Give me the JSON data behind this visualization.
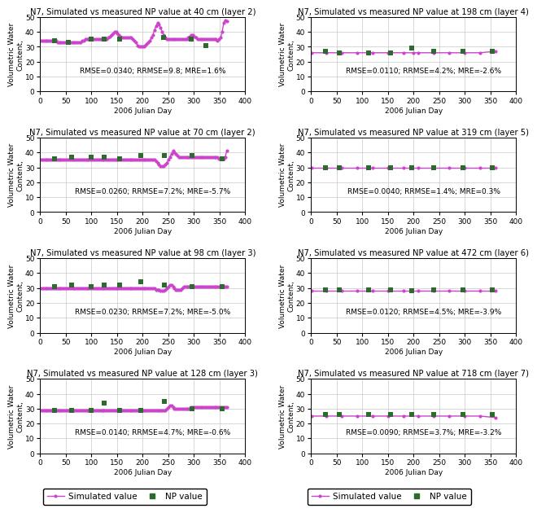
{
  "panels": [
    {
      "title": "N7, Simulated vs measured NP value at 40 cm (layer 2)",
      "rmse_text": "RMSE=0.0340; RRMSE=9.8; MRE=1.6%",
      "ylim": [
        0,
        50
      ],
      "yticks": [
        0,
        10,
        20,
        30,
        40,
        50
      ],
      "sim_x": [
        1,
        4,
        7,
        10,
        13,
        16,
        19,
        22,
        25,
        28,
        31,
        34,
        37,
        40,
        43,
        46,
        49,
        52,
        55,
        58,
        61,
        64,
        67,
        70,
        73,
        76,
        79,
        82,
        85,
        88,
        91,
        94,
        97,
        100,
        103,
        106,
        109,
        112,
        115,
        118,
        121,
        124,
        127,
        130,
        133,
        136,
        139,
        142,
        145,
        148,
        151,
        154,
        157,
        160,
        163,
        166,
        169,
        172,
        175,
        178,
        181,
        184,
        187,
        190,
        193,
        196,
        199,
        202,
        205,
        208,
        211,
        214,
        217,
        220,
        223,
        226,
        229,
        232,
        235,
        238,
        241,
        244,
        247,
        250,
        253,
        256,
        259,
        262,
        265,
        268,
        271,
        274,
        277,
        280,
        283,
        286,
        289,
        292,
        295,
        298,
        301,
        304,
        307,
        310,
        313,
        316,
        319,
        322,
        325,
        328,
        331,
        334,
        337,
        340,
        343,
        346,
        349,
        352,
        355,
        358,
        361,
        364
      ],
      "sim_y": [
        34,
        34,
        34,
        34,
        34,
        34,
        34,
        34,
        34,
        34,
        34,
        33,
        33,
        33,
        33,
        33,
        33,
        33,
        33,
        33,
        33,
        33,
        33,
        33,
        33,
        33,
        33,
        34,
        34,
        35,
        35,
        35,
        35,
        35,
        35,
        35,
        35,
        35,
        35,
        35,
        35,
        35,
        35,
        35,
        36,
        37,
        38,
        39,
        40,
        40,
        39,
        38,
        37,
        36,
        36,
        36,
        36,
        36,
        36,
        36,
        35,
        34,
        33,
        31,
        30,
        30,
        30,
        30,
        31,
        32,
        33,
        34,
        36,
        38,
        41,
        44,
        46,
        45,
        43,
        40,
        38,
        36,
        35,
        35,
        35,
        35,
        35,
        35,
        35,
        35,
        35,
        35,
        35,
        35,
        35,
        35,
        36,
        37,
        38,
        38,
        37,
        36,
        35,
        35,
        35,
        35,
        35,
        35,
        35,
        35,
        35,
        35,
        35,
        35,
        35,
        34,
        35,
        36,
        40,
        46,
        48,
        47
      ],
      "np_x": [
        28,
        55,
        100,
        125,
        155,
        240,
        295,
        323
      ],
      "np_y": [
        34,
        33,
        35,
        35,
        35,
        36,
        35,
        31
      ]
    },
    {
      "title": "N7, Simulated vs measured NP value at 198 cm (layer 4)",
      "rmse_text": "RMSE=0.0110; RRMSE=4.2%; MRE=-2.6%",
      "ylim": [
        0,
        50
      ],
      "yticks": [
        0,
        10,
        20,
        30,
        40,
        50
      ],
      "sim_x": [
        1,
        30,
        60,
        90,
        120,
        150,
        180,
        200,
        210,
        240,
        270,
        300,
        330,
        360
      ],
      "sim_y": [
        26,
        26,
        26,
        26,
        26,
        26,
        26,
        26,
        26,
        26,
        26,
        26,
        26,
        27
      ],
      "np_x": [
        28,
        55,
        112,
        155,
        197,
        240,
        297,
        353
      ],
      "np_y": [
        27,
        26,
        26,
        26,
        29,
        27,
        27,
        27
      ]
    },
    {
      "title": "N7, Simulated vs measured NP value at 70 cm (layer 2)",
      "rmse_text": "RMSE=0.0260; RRMSE=7.2%; MRE=-5.7%",
      "ylim": [
        0,
        50
      ],
      "yticks": [
        0,
        10,
        20,
        30,
        40,
        50
      ],
      "sim_x": [
        1,
        4,
        7,
        10,
        13,
        16,
        19,
        22,
        25,
        28,
        31,
        34,
        37,
        40,
        43,
        46,
        49,
        52,
        55,
        58,
        61,
        64,
        67,
        70,
        73,
        76,
        79,
        82,
        85,
        88,
        91,
        94,
        97,
        100,
        103,
        106,
        109,
        112,
        115,
        118,
        121,
        124,
        127,
        130,
        133,
        136,
        139,
        142,
        145,
        148,
        151,
        154,
        157,
        160,
        163,
        166,
        169,
        172,
        175,
        178,
        181,
        184,
        187,
        190,
        193,
        196,
        199,
        202,
        205,
        208,
        211,
        214,
        217,
        220,
        223,
        226,
        229,
        232,
        235,
        238,
        241,
        244,
        247,
        250,
        253,
        256,
        259,
        262,
        265,
        268,
        271,
        274,
        277,
        280,
        283,
        286,
        289,
        292,
        295,
        298,
        301,
        304,
        307,
        310,
        313,
        316,
        319,
        322,
        325,
        328,
        331,
        334,
        337,
        340,
        343,
        346,
        349,
        352,
        355,
        358,
        361,
        364
      ],
      "sim_y": [
        35,
        35,
        35,
        35,
        35,
        35,
        35,
        35,
        35,
        35,
        35,
        35,
        35,
        35,
        35,
        35,
        35,
        35,
        35,
        35,
        35,
        35,
        35,
        35,
        35,
        35,
        35,
        35,
        35,
        35,
        35,
        35,
        35,
        35,
        35,
        35,
        35,
        35,
        35,
        35,
        35,
        35,
        35,
        35,
        35,
        35,
        35,
        35,
        35,
        35,
        35,
        35,
        35,
        35,
        35,
        35,
        35,
        35,
        35,
        35,
        35,
        35,
        35,
        35,
        35,
        35,
        35,
        35,
        35,
        35,
        35,
        35,
        35,
        35,
        35,
        34,
        33,
        32,
        31,
        31,
        31,
        32,
        33,
        35,
        37,
        39,
        41,
        40,
        39,
        38,
        37,
        37,
        37,
        37,
        37,
        37,
        37,
        37,
        37,
        37,
        37,
        37,
        37,
        37,
        37,
        37,
        37,
        37,
        37,
        37,
        37,
        37,
        37,
        37,
        37,
        37,
        36,
        36,
        36,
        36,
        37,
        41
      ],
      "np_x": [
        28,
        62,
        100,
        125,
        155,
        197,
        242,
        297,
        355
      ],
      "np_y": [
        36,
        37,
        37,
        37,
        36,
        38,
        38,
        38,
        36
      ]
    },
    {
      "title": "N7, Simulated vs measured NP value at 319 cm (layer 5)",
      "rmse_text": "RMSE=0.0040; RRMSE=1.4%; MRE=0.3%",
      "ylim": [
        0,
        50
      ],
      "yticks": [
        0,
        10,
        20,
        30,
        40,
        50
      ],
      "sim_x": [
        1,
        30,
        60,
        90,
        120,
        150,
        180,
        210,
        240,
        270,
        300,
        330,
        360
      ],
      "sim_y": [
        30,
        30,
        30,
        30,
        30,
        30,
        30,
        30,
        30,
        30,
        30,
        30,
        30
      ],
      "np_x": [
        28,
        55,
        112,
        155,
        197,
        240,
        297,
        353
      ],
      "np_y": [
        30,
        30,
        30,
        30,
        30,
        30,
        30,
        30
      ]
    },
    {
      "title": "N7, Simulated vs measured NP value at 98 cm (layer 3)",
      "rmse_text": "RMSE=0.0230; RRMSE=7.2%; MRE=-5.0%",
      "ylim": [
        0,
        50
      ],
      "yticks": [
        0,
        10,
        20,
        30,
        40,
        50
      ],
      "sim_x": [
        1,
        4,
        7,
        10,
        13,
        16,
        19,
        22,
        25,
        28,
        31,
        34,
        37,
        40,
        43,
        46,
        49,
        52,
        55,
        58,
        61,
        64,
        67,
        70,
        73,
        76,
        79,
        82,
        85,
        88,
        91,
        94,
        97,
        100,
        103,
        106,
        109,
        112,
        115,
        118,
        121,
        124,
        127,
        130,
        133,
        136,
        139,
        142,
        145,
        148,
        151,
        154,
        157,
        160,
        163,
        166,
        169,
        172,
        175,
        178,
        181,
        184,
        187,
        190,
        193,
        196,
        199,
        202,
        205,
        208,
        211,
        214,
        217,
        220,
        223,
        226,
        229,
        232,
        235,
        238,
        241,
        244,
        247,
        250,
        253,
        256,
        259,
        262,
        265,
        268,
        271,
        274,
        277,
        280,
        283,
        286,
        289,
        292,
        295,
        298,
        301,
        304,
        307,
        310,
        313,
        316,
        319,
        322,
        325,
        328,
        331,
        334,
        337,
        340,
        343,
        346,
        349,
        352,
        355,
        358,
        361,
        364
      ],
      "sim_y": [
        30,
        30,
        30,
        30,
        30,
        30,
        30,
        30,
        30,
        30,
        30,
        30,
        30,
        30,
        30,
        30,
        30,
        30,
        30,
        30,
        30,
        30,
        30,
        30,
        30,
        30,
        30,
        30,
        30,
        30,
        30,
        30,
        30,
        30,
        30,
        30,
        30,
        30,
        30,
        30,
        30,
        30,
        30,
        30,
        30,
        30,
        30,
        30,
        30,
        30,
        30,
        30,
        30,
        30,
        30,
        30,
        30,
        30,
        30,
        30,
        30,
        30,
        30,
        30,
        30,
        30,
        30,
        30,
        30,
        30,
        30,
        30,
        30,
        30,
        30,
        29,
        29,
        29,
        28,
        28,
        28,
        29,
        30,
        31,
        32,
        32,
        31,
        30,
        29,
        29,
        29,
        29,
        30,
        31,
        31,
        31,
        31,
        31,
        31,
        31,
        31,
        31,
        31,
        31,
        31,
        31,
        31,
        31,
        31,
        31,
        31,
        31,
        31,
        31,
        31,
        31,
        31,
        31,
        31,
        31,
        31,
        31
      ],
      "np_x": [
        28,
        62,
        100,
        125,
        155,
        197,
        242,
        297,
        355
      ],
      "np_y": [
        31,
        32,
        31,
        32,
        32,
        34,
        32,
        31,
        31
      ]
    },
    {
      "title": "N7, Simulated vs measured NP value at 472 cm (layer 6)",
      "rmse_text": "RMSE=0.0120; RRMSE=4.5%; MRE=-3.9%",
      "ylim": [
        0,
        50
      ],
      "yticks": [
        0,
        10,
        20,
        30,
        40,
        50
      ],
      "sim_x": [
        1,
        30,
        60,
        90,
        120,
        150,
        180,
        210,
        240,
        270,
        300,
        330,
        360
      ],
      "sim_y": [
        28,
        28,
        28,
        28,
        28,
        28,
        28,
        28,
        28,
        28,
        28,
        28,
        28
      ],
      "np_x": [
        28,
        55,
        112,
        155,
        197,
        240,
        297,
        353
      ],
      "np_y": [
        29,
        29,
        29,
        29,
        28,
        29,
        29,
        29
      ]
    },
    {
      "title": "N7, Simulated vs measured NP value at 128 cm (layer 3)",
      "rmse_text": "RMSE=0.0140; RRMSE=4.7%; MRE=-0.6%",
      "ylim": [
        0,
        50
      ],
      "yticks": [
        0,
        10,
        20,
        30,
        40,
        50
      ],
      "sim_x": [
        1,
        4,
        7,
        10,
        13,
        16,
        19,
        22,
        25,
        28,
        31,
        34,
        37,
        40,
        43,
        46,
        49,
        52,
        55,
        58,
        61,
        64,
        67,
        70,
        73,
        76,
        79,
        82,
        85,
        88,
        91,
        94,
        97,
        100,
        103,
        106,
        109,
        112,
        115,
        118,
        121,
        124,
        127,
        130,
        133,
        136,
        139,
        142,
        145,
        148,
        151,
        154,
        157,
        160,
        163,
        166,
        169,
        172,
        175,
        178,
        181,
        184,
        187,
        190,
        193,
        196,
        199,
        202,
        205,
        208,
        211,
        214,
        217,
        220,
        223,
        226,
        229,
        232,
        235,
        238,
        241,
        244,
        247,
        250,
        253,
        256,
        259,
        262,
        265,
        268,
        271,
        274,
        277,
        280,
        283,
        286,
        289,
        292,
        295,
        298,
        301,
        304,
        307,
        310,
        313,
        316,
        319,
        322,
        325,
        328,
        331,
        334,
        337,
        340,
        343,
        346,
        349,
        352,
        355,
        358,
        361,
        364
      ],
      "sim_y": [
        29,
        29,
        29,
        29,
        29,
        29,
        29,
        29,
        29,
        29,
        29,
        29,
        29,
        29,
        29,
        29,
        29,
        29,
        29,
        29,
        29,
        29,
        29,
        29,
        29,
        29,
        29,
        29,
        29,
        29,
        29,
        29,
        29,
        29,
        29,
        29,
        29,
        29,
        29,
        29,
        29,
        29,
        29,
        29,
        29,
        29,
        29,
        29,
        29,
        29,
        29,
        29,
        29,
        29,
        29,
        29,
        29,
        29,
        29,
        29,
        29,
        29,
        29,
        29,
        29,
        29,
        29,
        29,
        29,
        29,
        29,
        29,
        29,
        29,
        29,
        29,
        29,
        29,
        29,
        29,
        29,
        29,
        30,
        31,
        32,
        32,
        31,
        30,
        30,
        30,
        30,
        30,
        30,
        30,
        30,
        30,
        30,
        30,
        31,
        31,
        31,
        31,
        31,
        31,
        31,
        31,
        31,
        31,
        31,
        31,
        31,
        31,
        31,
        31,
        31,
        31,
        31,
        31,
        31,
        31,
        31,
        31
      ],
      "np_x": [
        28,
        62,
        100,
        125,
        155,
        197,
        242,
        297,
        355
      ],
      "np_y": [
        29,
        29,
        29,
        34,
        29,
        29,
        35,
        30,
        30
      ]
    },
    {
      "title": "N7, Simulated vs measured NP value at 718 cm (layer 7)",
      "rmse_text": "RMSE=0.0090; RRMSE=3.7%; MRE=-3.2%",
      "ylim": [
        0,
        50
      ],
      "yticks": [
        0,
        10,
        20,
        30,
        40,
        50
      ],
      "sim_x": [
        1,
        30,
        60,
        90,
        120,
        150,
        180,
        210,
        240,
        270,
        300,
        330,
        360
      ],
      "sim_y": [
        25,
        25,
        25,
        25,
        25,
        25,
        25,
        25,
        25,
        25,
        25,
        25,
        24
      ],
      "np_x": [
        28,
        55,
        112,
        155,
        197,
        240,
        297,
        353
      ],
      "np_y": [
        26,
        26,
        26,
        26,
        26,
        26,
        26,
        26
      ]
    }
  ],
  "sim_color": "#CC44CC",
  "np_color": "#2D6A2D",
  "np_marker": "s",
  "np_markersize": 5,
  "sim_linewidth": 1.0,
  "sim_marker": "o",
  "sim_markersize": 2,
  "xlabel": "2006 Julian Day",
  "ylabel": "Volumetric Water\nContent,",
  "xlim": [
    0,
    400
  ],
  "xticks": [
    0,
    50,
    100,
    150,
    200,
    250,
    300,
    350,
    400
  ],
  "title_fontsize": 7.2,
  "axis_label_fontsize": 6.5,
  "tick_fontsize": 6.5,
  "rmse_fontsize": 6.5,
  "legend_fontsize": 7.5,
  "figure_facecolor": "#ffffff",
  "grid_color": "#c8c8c8"
}
